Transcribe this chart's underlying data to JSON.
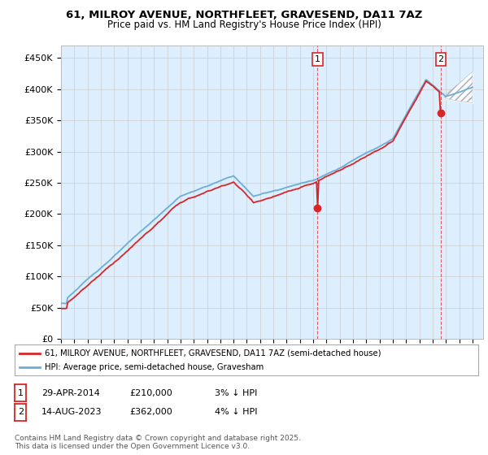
{
  "title_line1": "61, MILROY AVENUE, NORTHFLEET, GRAVESEND, DA11 7AZ",
  "title_line2": "Price paid vs. HM Land Registry's House Price Index (HPI)",
  "ylabel_ticks": [
    "£0",
    "£50K",
    "£100K",
    "£150K",
    "£200K",
    "£250K",
    "£300K",
    "£350K",
    "£400K",
    "£450K"
  ],
  "ylabel_values": [
    0,
    50000,
    100000,
    150000,
    200000,
    250000,
    300000,
    350000,
    400000,
    450000
  ],
  "x_start_year": 1995,
  "x_end_year": 2026,
  "hpi_color": "#6baed6",
  "price_color": "#d62728",
  "sale1_year": 2014.33,
  "sale1_price": 210000,
  "sale2_year": 2023.62,
  "sale2_price": 362000,
  "legend_label1": "61, MILROY AVENUE, NORTHFLEET, GRAVESEND, DA11 7AZ (semi-detached house)",
  "legend_label2": "HPI: Average price, semi-detached house, Gravesham",
  "sale1_date": "29-APR-2014",
  "sale1_text": "£210,000",
  "sale1_pct": "3% ↓ HPI",
  "sale2_date": "14-AUG-2023",
  "sale2_text": "£362,000",
  "sale2_pct": "4% ↓ HPI",
  "footer": "Contains HM Land Registry data © Crown copyright and database right 2025.\nThis data is licensed under the Open Government Licence v3.0.",
  "bg_color": "#ffffff",
  "plot_bg_color": "#ddeeff",
  "grid_color": "#cccccc"
}
